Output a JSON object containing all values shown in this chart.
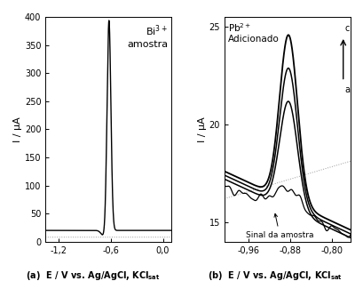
{
  "panel_a": {
    "xlim": [
      -1.35,
      0.1
    ],
    "ylim": [
      0,
      400
    ],
    "xticks": [
      -1.2,
      -0.6,
      0.0
    ],
    "yticks": [
      0,
      50,
      100,
      150,
      200,
      250,
      300,
      350,
      400
    ],
    "ylabel": "I / μA",
    "peak_x": -0.62,
    "peak_y": 375,
    "peak_sigma": 0.022,
    "baseline_y": 20,
    "dip_x": -0.68,
    "dip_sigma": 0.03,
    "dip_amp": 10,
    "dot_y": 8
  },
  "panel_b": {
    "xlim": [
      -1.005,
      -0.765
    ],
    "ylim": [
      14.0,
      25.5
    ],
    "xticks": [
      -0.96,
      -0.88,
      -0.8
    ],
    "yticks": [
      15,
      20,
      25
    ],
    "ylabel": "I / μA",
    "peak_x": -0.883,
    "peak_sigma": 0.017
  },
  "background_color": "#ffffff",
  "line_color": "#000000",
  "dotted_color": "#999999"
}
